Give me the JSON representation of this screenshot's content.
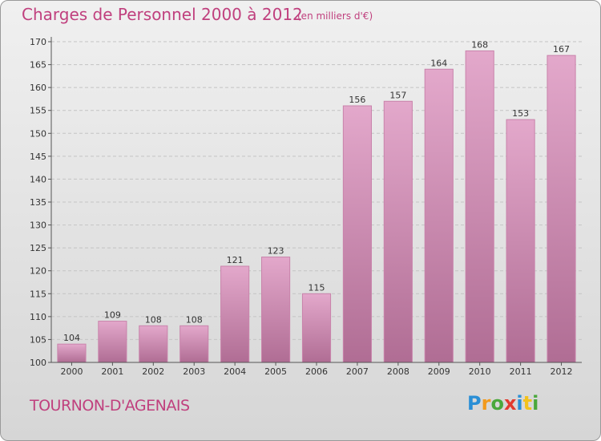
{
  "header": {
    "title": "Charges de Personnel 2000 à 2012",
    "subtitle": "(en milliers d'€)"
  },
  "footer": {
    "commune": "TOURNON-D'AGENAIS",
    "brand": "Proxiti",
    "brand_letters": [
      {
        "ch": "P",
        "color": "#2a8fd6"
      },
      {
        "ch": "r",
        "color": "#f29a1d"
      },
      {
        "ch": "o",
        "color": "#4aa83c"
      },
      {
        "ch": "x",
        "color": "#e23b2f"
      },
      {
        "ch": "i",
        "color": "#2a8fd6"
      },
      {
        "ch": "t",
        "color": "#f2c21d"
      },
      {
        "ch": "i",
        "color": "#4aa83c"
      }
    ]
  },
  "colors": {
    "accent": "#c0407e",
    "bar_top": "#e3a8cb",
    "bar_bottom": "#b06d94"
  },
  "chart_data": {
    "type": "bar",
    "categories": [
      "2000",
      "2001",
      "2002",
      "2003",
      "2004",
      "2005",
      "2006",
      "2007",
      "2008",
      "2009",
      "2010",
      "2011",
      "2012"
    ],
    "values": [
      104,
      109,
      108,
      108,
      121,
      123,
      115,
      156,
      157,
      164,
      168,
      153,
      167
    ],
    "title": "Charges de Personnel 2000 à 2012",
    "ylim": [
      100,
      170
    ],
    "yticks": [
      100,
      105,
      110,
      115,
      120,
      125,
      130,
      135,
      140,
      145,
      150,
      155,
      160,
      165,
      170
    ],
    "grid": true,
    "data_labels": true
  }
}
